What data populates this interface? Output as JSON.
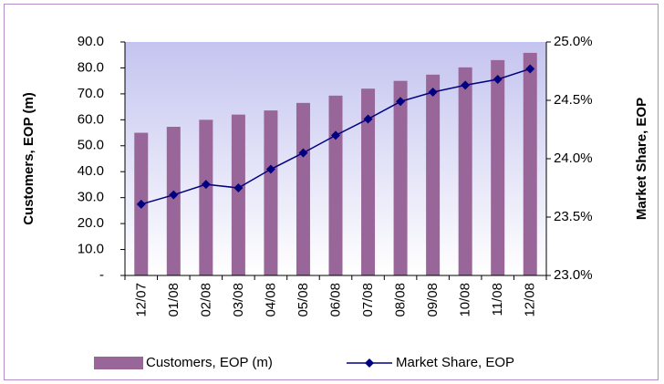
{
  "chart_data": {
    "type": "bar_line",
    "categories": [
      "12/07",
      "01/08",
      "02/08",
      "03/08",
      "04/08",
      "05/08",
      "06/08",
      "07/08",
      "08/08",
      "09/08",
      "10/08",
      "11/08",
      "12/08"
    ],
    "series": [
      {
        "name": "Customers, EOP (m)",
        "type": "bar",
        "color": "#996699",
        "values": [
          55,
          57.3,
          60,
          62,
          63.6,
          66.5,
          69.3,
          72,
          75,
          77.4,
          80.2,
          83,
          85.8
        ]
      },
      {
        "name": "Market Share, EOP",
        "type": "line",
        "axis": "y2",
        "color": "#000080",
        "values": [
          23.61,
          23.69,
          23.78,
          23.75,
          23.91,
          24.05,
          24.2,
          24.34,
          24.49,
          24.57,
          24.63,
          24.68,
          24.77
        ]
      }
    ],
    "ylabel": "Customers, EOP (m)",
    "y2label": "Market Share, EOP",
    "ylim": [
      0,
      90
    ],
    "yticks": [
      {
        "value": 0,
        "label": "-"
      },
      {
        "value": 10,
        "label": "10.0"
      },
      {
        "value": 20,
        "label": "20.0"
      },
      {
        "value": 30,
        "label": "30.0"
      },
      {
        "value": 40,
        "label": "40.0"
      },
      {
        "value": 50,
        "label": "50.0"
      },
      {
        "value": 60,
        "label": "60.0"
      },
      {
        "value": 70,
        "label": "70.0"
      },
      {
        "value": 80,
        "label": "80.0"
      },
      {
        "value": 90,
        "label": "90.0"
      }
    ],
    "y2lim": [
      23,
      25
    ],
    "y2ticks": [
      {
        "value": 23,
        "label": "23.0%"
      },
      {
        "value": 23.5,
        "label": "23.5%"
      },
      {
        "value": 24,
        "label": "24.0%"
      },
      {
        "value": 24.5,
        "label": "24.5%"
      },
      {
        "value": 25,
        "label": "25.0%"
      }
    ],
    "legend": "bottom"
  }
}
